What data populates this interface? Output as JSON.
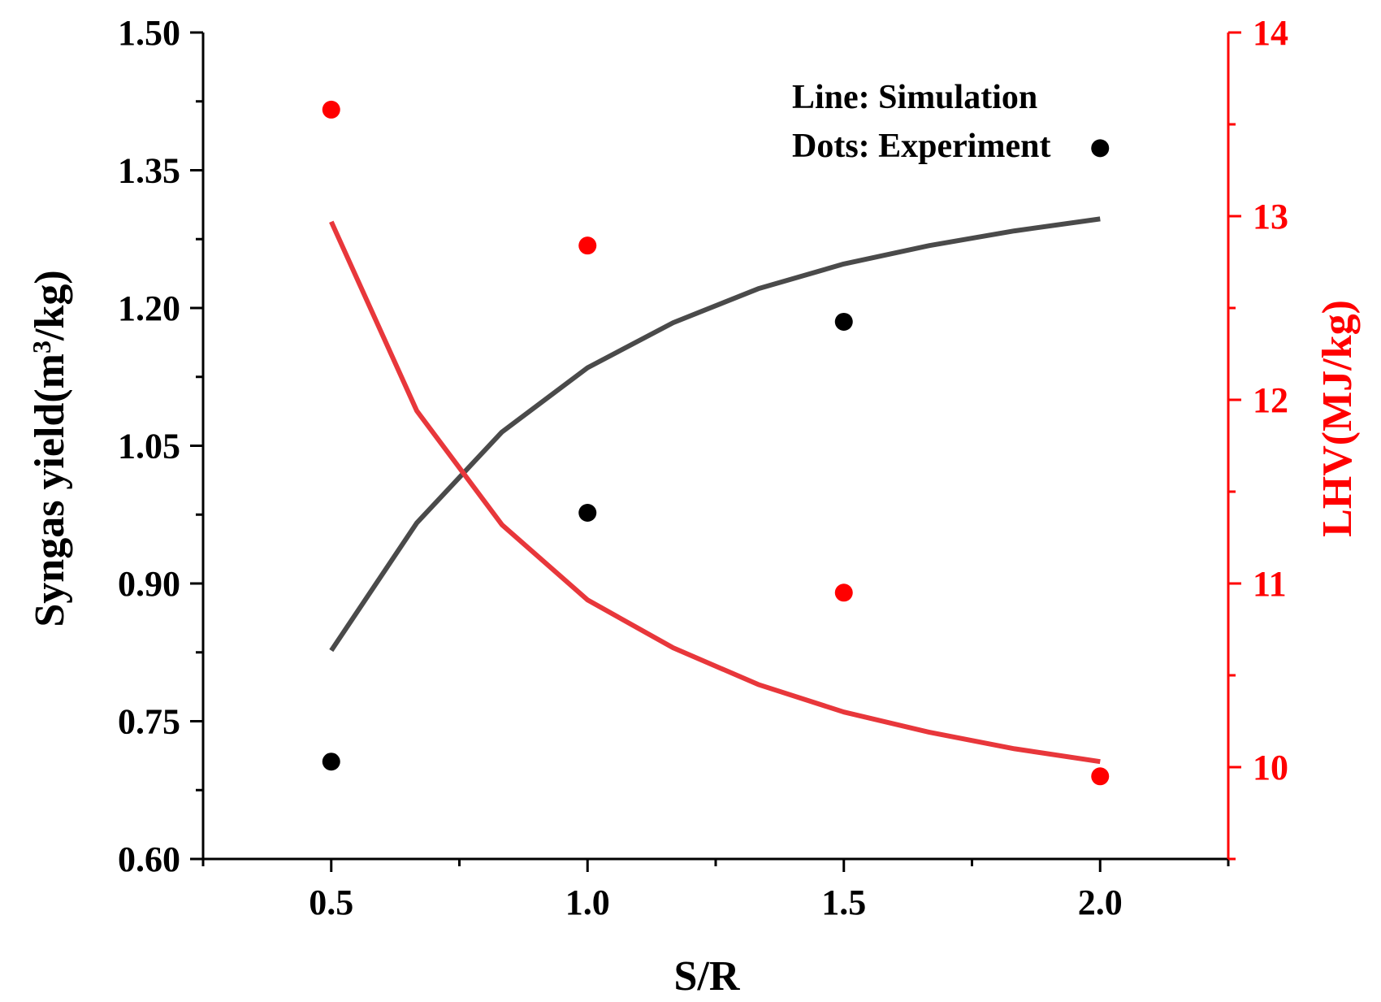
{
  "colors": {
    "left_series": "#4a4a4a",
    "left_dots": "#000000",
    "right_series": "#e8373b",
    "right_dots": "#ff0000",
    "right_axis": "#ff0000",
    "axis": "#000000"
  },
  "chart_data": {
    "type": "line",
    "xlabel": "S/R",
    "ylabel_left_main": "Syngas yield(m",
    "ylabel_left_sup": "3",
    "ylabel_left_tail": "/kg)",
    "ylabel_right": "LHV(MJ/kg)",
    "xlim": [
      0.25,
      2.25
    ],
    "ylim_left": [
      0.6,
      1.5
    ],
    "ylim_right": [
      9.5,
      14
    ],
    "x_ticks": [
      "0.5",
      "1.0",
      "1.5",
      "2.0"
    ],
    "y_left_ticks": [
      "0.60",
      "0.75",
      "0.90",
      "1.05",
      "1.20",
      "1.35",
      "1.50"
    ],
    "y_right_ticks": [
      "10",
      "11",
      "12",
      "13",
      "14"
    ],
    "legend": {
      "line_text": "Line: Simulation",
      "dots_text": "Dots: Experiment"
    },
    "series": [
      {
        "name": "Syngas yield (simulation)",
        "axis": "left",
        "kind": "line",
        "x": [
          0.5,
          0.667,
          0.833,
          1.0,
          1.167,
          1.333,
          1.5,
          1.667,
          1.833,
          2.0
        ],
        "values": [
          0.827,
          0.966,
          1.065,
          1.135,
          1.184,
          1.221,
          1.248,
          1.268,
          1.284,
          1.297
        ]
      },
      {
        "name": "Syngas yield (experiment)",
        "axis": "left",
        "kind": "scatter",
        "x": [
          0.5,
          1.0,
          1.5,
          2.0
        ],
        "values": [
          0.706,
          0.977,
          1.185,
          1.374
        ]
      },
      {
        "name": "LHV (simulation)",
        "axis": "right",
        "kind": "line",
        "x": [
          0.5,
          0.667,
          0.833,
          1.0,
          1.167,
          1.333,
          1.5,
          1.667,
          1.833,
          2.0
        ],
        "values": [
          12.97,
          11.94,
          11.32,
          10.91,
          10.65,
          10.45,
          10.3,
          10.19,
          10.1,
          10.03
        ]
      },
      {
        "name": "LHV (experiment)",
        "axis": "right",
        "kind": "scatter",
        "x": [
          0.5,
          1.0,
          1.5,
          2.0
        ],
        "values": [
          13.58,
          12.84,
          10.95,
          9.95
        ]
      }
    ]
  }
}
